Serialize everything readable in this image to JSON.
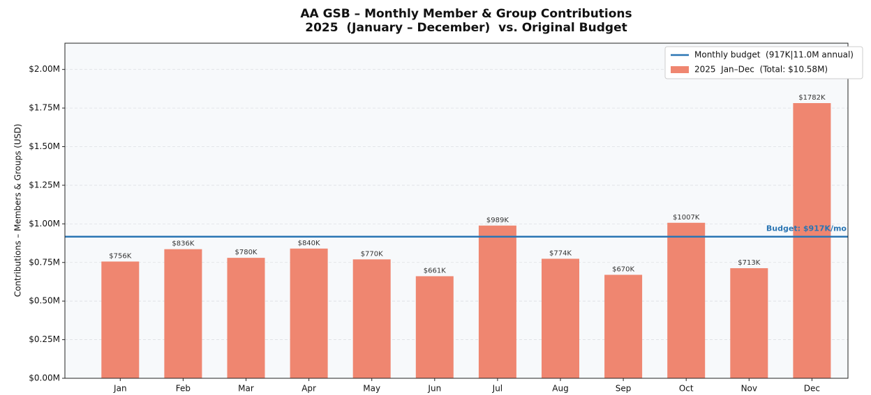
{
  "chart_data": {
    "type": "bar",
    "title": "AA GSB – Monthly Member & Group Contributions",
    "subtitle": "2025  (January – December)  vs. Original Budget",
    "y_label": "Contributions – Members & Groups (USD)",
    "categories": [
      "Jan",
      "Feb",
      "Mar",
      "Apr",
      "May",
      "Jun",
      "Jul",
      "Aug",
      "Sep",
      "Oct",
      "Nov",
      "Dec"
    ],
    "series": [
      {
        "name": "2025  Jan–Dec  (Total: $10.58M)",
        "color": "#ef8670",
        "values": [
          756000,
          836000,
          780000,
          840000,
          770000,
          661000,
          989000,
          774000,
          670000,
          1007000,
          713000,
          1782000
        ],
        "value_labels": [
          "$756K",
          "$836K",
          "$780K",
          "$840K",
          "$770K",
          "$661K",
          "$989K",
          "$774K",
          "$670K",
          "$1007K",
          "$713K",
          "$1782K"
        ]
      }
    ],
    "budget": {
      "name": "Monthly budget  (917K|11.0M annual)",
      "value": 917000,
      "label": "Budget: $917K/mo",
      "color": "#2a75b3"
    },
    "ylim": [
      0,
      2170000
    ],
    "yticks": [
      {
        "value": 0,
        "label": "$0.00M"
      },
      {
        "value": 250000,
        "label": "$0.25M"
      },
      {
        "value": 500000,
        "label": "$0.50M"
      },
      {
        "value": 750000,
        "label": "$0.75M"
      },
      {
        "value": 1000000,
        "label": "$1.00M"
      },
      {
        "value": 1250000,
        "label": "$1.25M"
      },
      {
        "value": 1500000,
        "label": "$1.50M"
      },
      {
        "value": 1750000,
        "label": "$1.75M"
      },
      {
        "value": 2000000,
        "label": "$2.00M"
      }
    ],
    "grid": true,
    "legend": "upper right"
  }
}
